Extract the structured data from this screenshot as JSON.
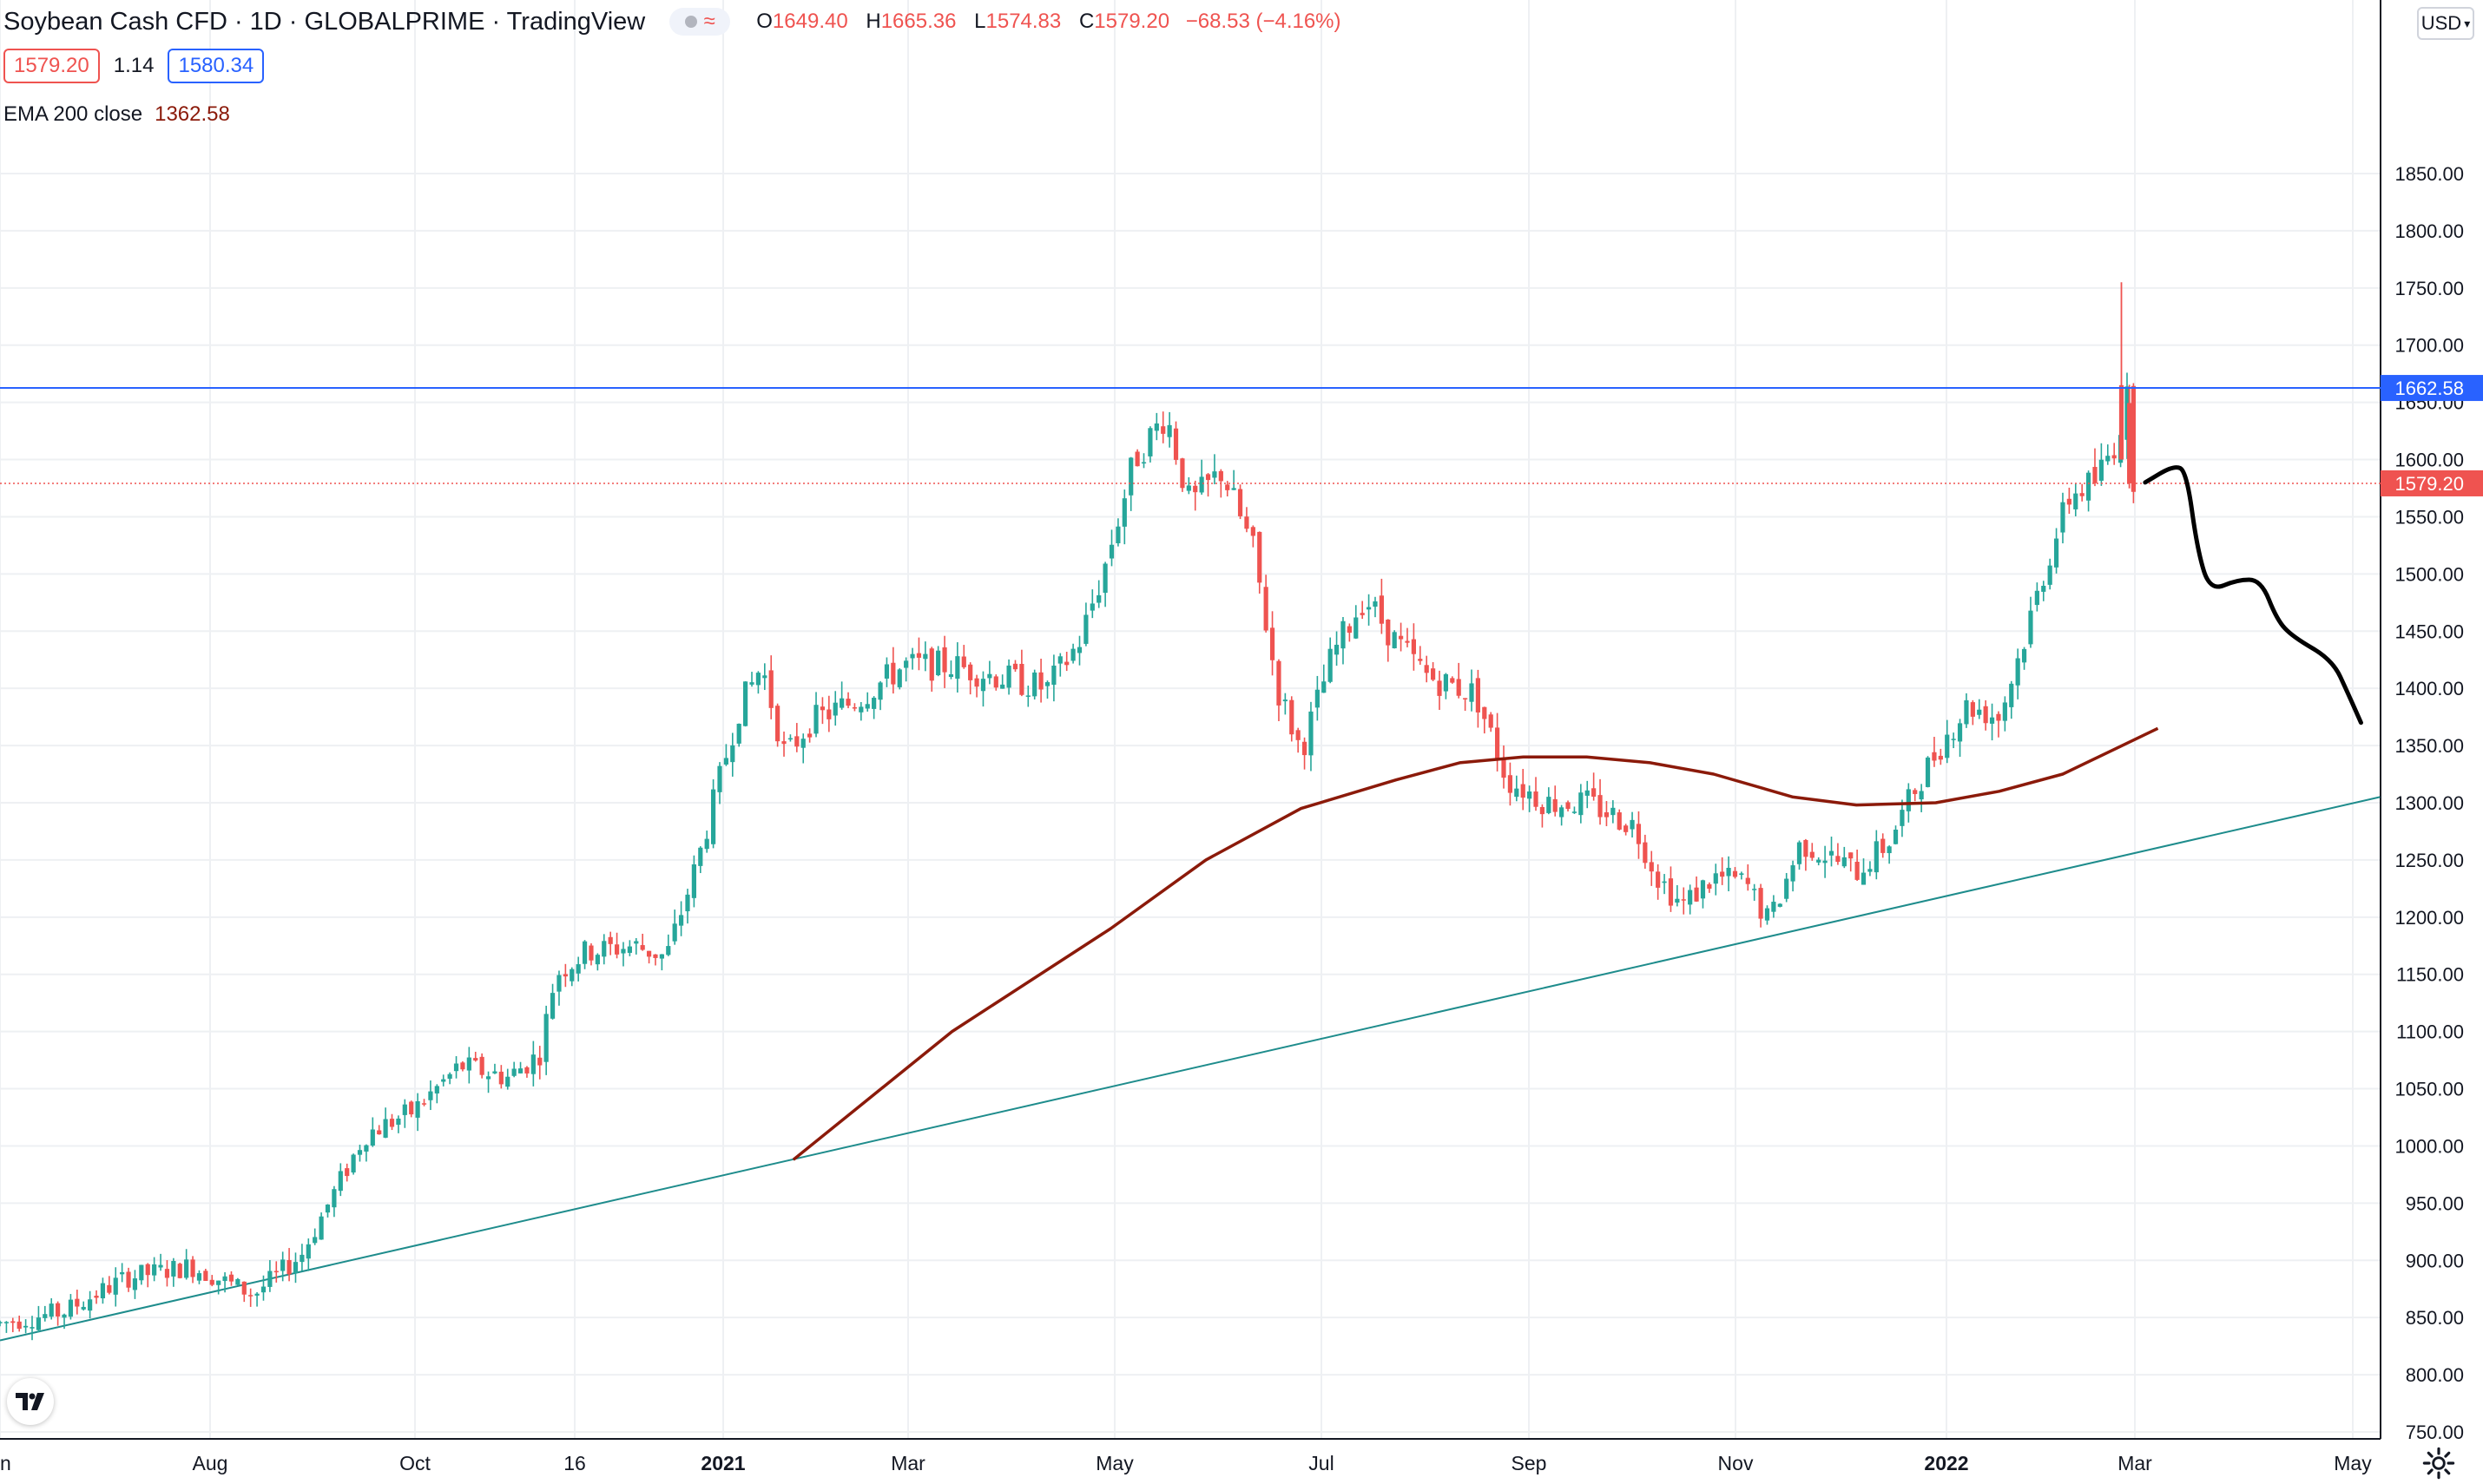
{
  "header": {
    "title": "Soybean Cash CFD · 1D · GLOBALPRIME · TradingView",
    "ohlc": {
      "o_label": "O",
      "o": "1649.40",
      "h_label": "H",
      "h": "1665.36",
      "l_label": "L",
      "l": "1574.83",
      "c_label": "C",
      "c": "1579.20",
      "change": "−68.53 (−4.16%)"
    },
    "bid": "1579.20",
    "spread": "1.14",
    "ask": "1580.34",
    "indicator_label": "EMA 200 close",
    "indicator_value": "1362.58",
    "currency": "USD"
  },
  "colors": {
    "up": "#26a69a",
    "down": "#ef5350",
    "ema": "#8b1a0a",
    "hline": "#2962ff",
    "trend": "#1e8c8c",
    "grid": "#eef0f3",
    "projection": "#000000"
  },
  "icons": {
    "logo": "tradingview-logo-icon",
    "settings": "gear-icon",
    "currency_chevron": "chevron-down-icon",
    "visibility": "eye-dot-icon",
    "wave": "wave-icon"
  },
  "chart_data": {
    "type": "candlestick",
    "symbol": "Soybean Cash CFD",
    "interval": "1D",
    "y_axis": {
      "ticks": [
        "1850.00",
        "1800.00",
        "1750.00",
        "1700.00",
        "1650.00",
        "1600.00",
        "1550.00",
        "1500.00",
        "1450.00",
        "1400.00",
        "1350.00",
        "1300.00",
        "1250.00",
        "1200.00",
        "1150.00",
        "1100.00",
        "1050.00",
        "1000.00",
        "950.00",
        "900.00",
        "850.00",
        "800.00",
        "750.00"
      ],
      "range": [
        750,
        1850
      ]
    },
    "x_axis": {
      "ticks": [
        "n",
        "Aug",
        "Oct",
        "16",
        "2021",
        "Mar",
        "May",
        "Jul",
        "Sep",
        "Nov",
        "2022",
        "Mar",
        "May"
      ],
      "bold_ticks": [
        "2021",
        "2022"
      ]
    },
    "price_path": [
      [
        0,
        845
      ],
      [
        40,
        855
      ],
      [
        80,
        885
      ],
      [
        120,
        895
      ],
      [
        160,
        870
      ],
      [
        190,
        905
      ],
      [
        230,
        1010
      ],
      [
        260,
        1030
      ],
      [
        290,
        1070
      ],
      [
        320,
        1060
      ],
      [
        340,
        1080
      ],
      [
        350,
        1150
      ],
      [
        370,
        1170
      ],
      [
        400,
        1175
      ],
      [
        420,
        1165
      ],
      [
        440,
        1250
      ],
      [
        465,
        1380
      ],
      [
        480,
        1420
      ],
      [
        495,
        1340
      ],
      [
        510,
        1370
      ],
      [
        540,
        1390
      ],
      [
        570,
        1420
      ],
      [
        600,
        1420
      ],
      [
        630,
        1410
      ],
      [
        660,
        1400
      ],
      [
        680,
        1440
      ],
      [
        695,
        1500
      ],
      [
        715,
        1600
      ],
      [
        735,
        1640
      ],
      [
        750,
        1560
      ],
      [
        770,
        1590
      ],
      [
        790,
        1520
      ],
      [
        805,
        1400
      ],
      [
        820,
        1345
      ],
      [
        840,
        1430
      ],
      [
        860,
        1480
      ],
      [
        880,
        1440
      ],
      [
        900,
        1410
      ],
      [
        930,
        1395
      ],
      [
        950,
        1320
      ],
      [
        975,
        1300
      ],
      [
        1000,
        1300
      ],
      [
        1030,
        1280
      ],
      [
        1045,
        1235
      ],
      [
        1060,
        1210
      ],
      [
        1080,
        1235
      ],
      [
        1100,
        1230
      ],
      [
        1115,
        1195
      ],
      [
        1135,
        1265
      ],
      [
        1150,
        1255
      ],
      [
        1170,
        1240
      ],
      [
        1190,
        1265
      ],
      [
        1210,
        1320
      ],
      [
        1225,
        1355
      ],
      [
        1240,
        1385
      ],
      [
        1260,
        1375
      ],
      [
        1275,
        1440
      ],
      [
        1290,
        1510
      ],
      [
        1305,
        1570
      ],
      [
        1320,
        1580
      ],
      [
        1335,
        1620
      ],
      [
        1340,
        1660
      ],
      [
        1345,
        1579.2
      ]
    ],
    "series": [
      {
        "name": "EMA 200 close",
        "last": 1362.58,
        "points": [
          [
            500,
            988
          ],
          [
            600,
            1100
          ],
          [
            700,
            1190
          ],
          [
            760,
            1250
          ],
          [
            820,
            1295
          ],
          [
            880,
            1320
          ],
          [
            920,
            1335
          ],
          [
            960,
            1340
          ],
          [
            1000,
            1340
          ],
          [
            1040,
            1335
          ],
          [
            1080,
            1325
          ],
          [
            1130,
            1305
          ],
          [
            1170,
            1298
          ],
          [
            1220,
            1300
          ],
          [
            1260,
            1310
          ],
          [
            1300,
            1325
          ],
          [
            1330,
            1345
          ],
          [
            1360,
            1365
          ]
        ]
      }
    ],
    "horizontal_line": {
      "value": 1662.58,
      "label": "1662.58"
    },
    "last_price_line": {
      "value": 1579.2,
      "label": "1579.20"
    },
    "trendline": {
      "from": [
        0,
        830
      ],
      "to": [
        1500,
        1305
      ]
    },
    "projection_path": [
      [
        1352,
        1580
      ],
      [
        1370,
        1595
      ],
      [
        1378,
        1590
      ],
      [
        1385,
        1520
      ],
      [
        1393,
        1485
      ],
      [
        1410,
        1495
      ],
      [
        1425,
        1495
      ],
      [
        1435,
        1460
      ],
      [
        1445,
        1445
      ],
      [
        1470,
        1425
      ],
      [
        1480,
        1395
      ],
      [
        1488,
        1370
      ]
    ]
  }
}
